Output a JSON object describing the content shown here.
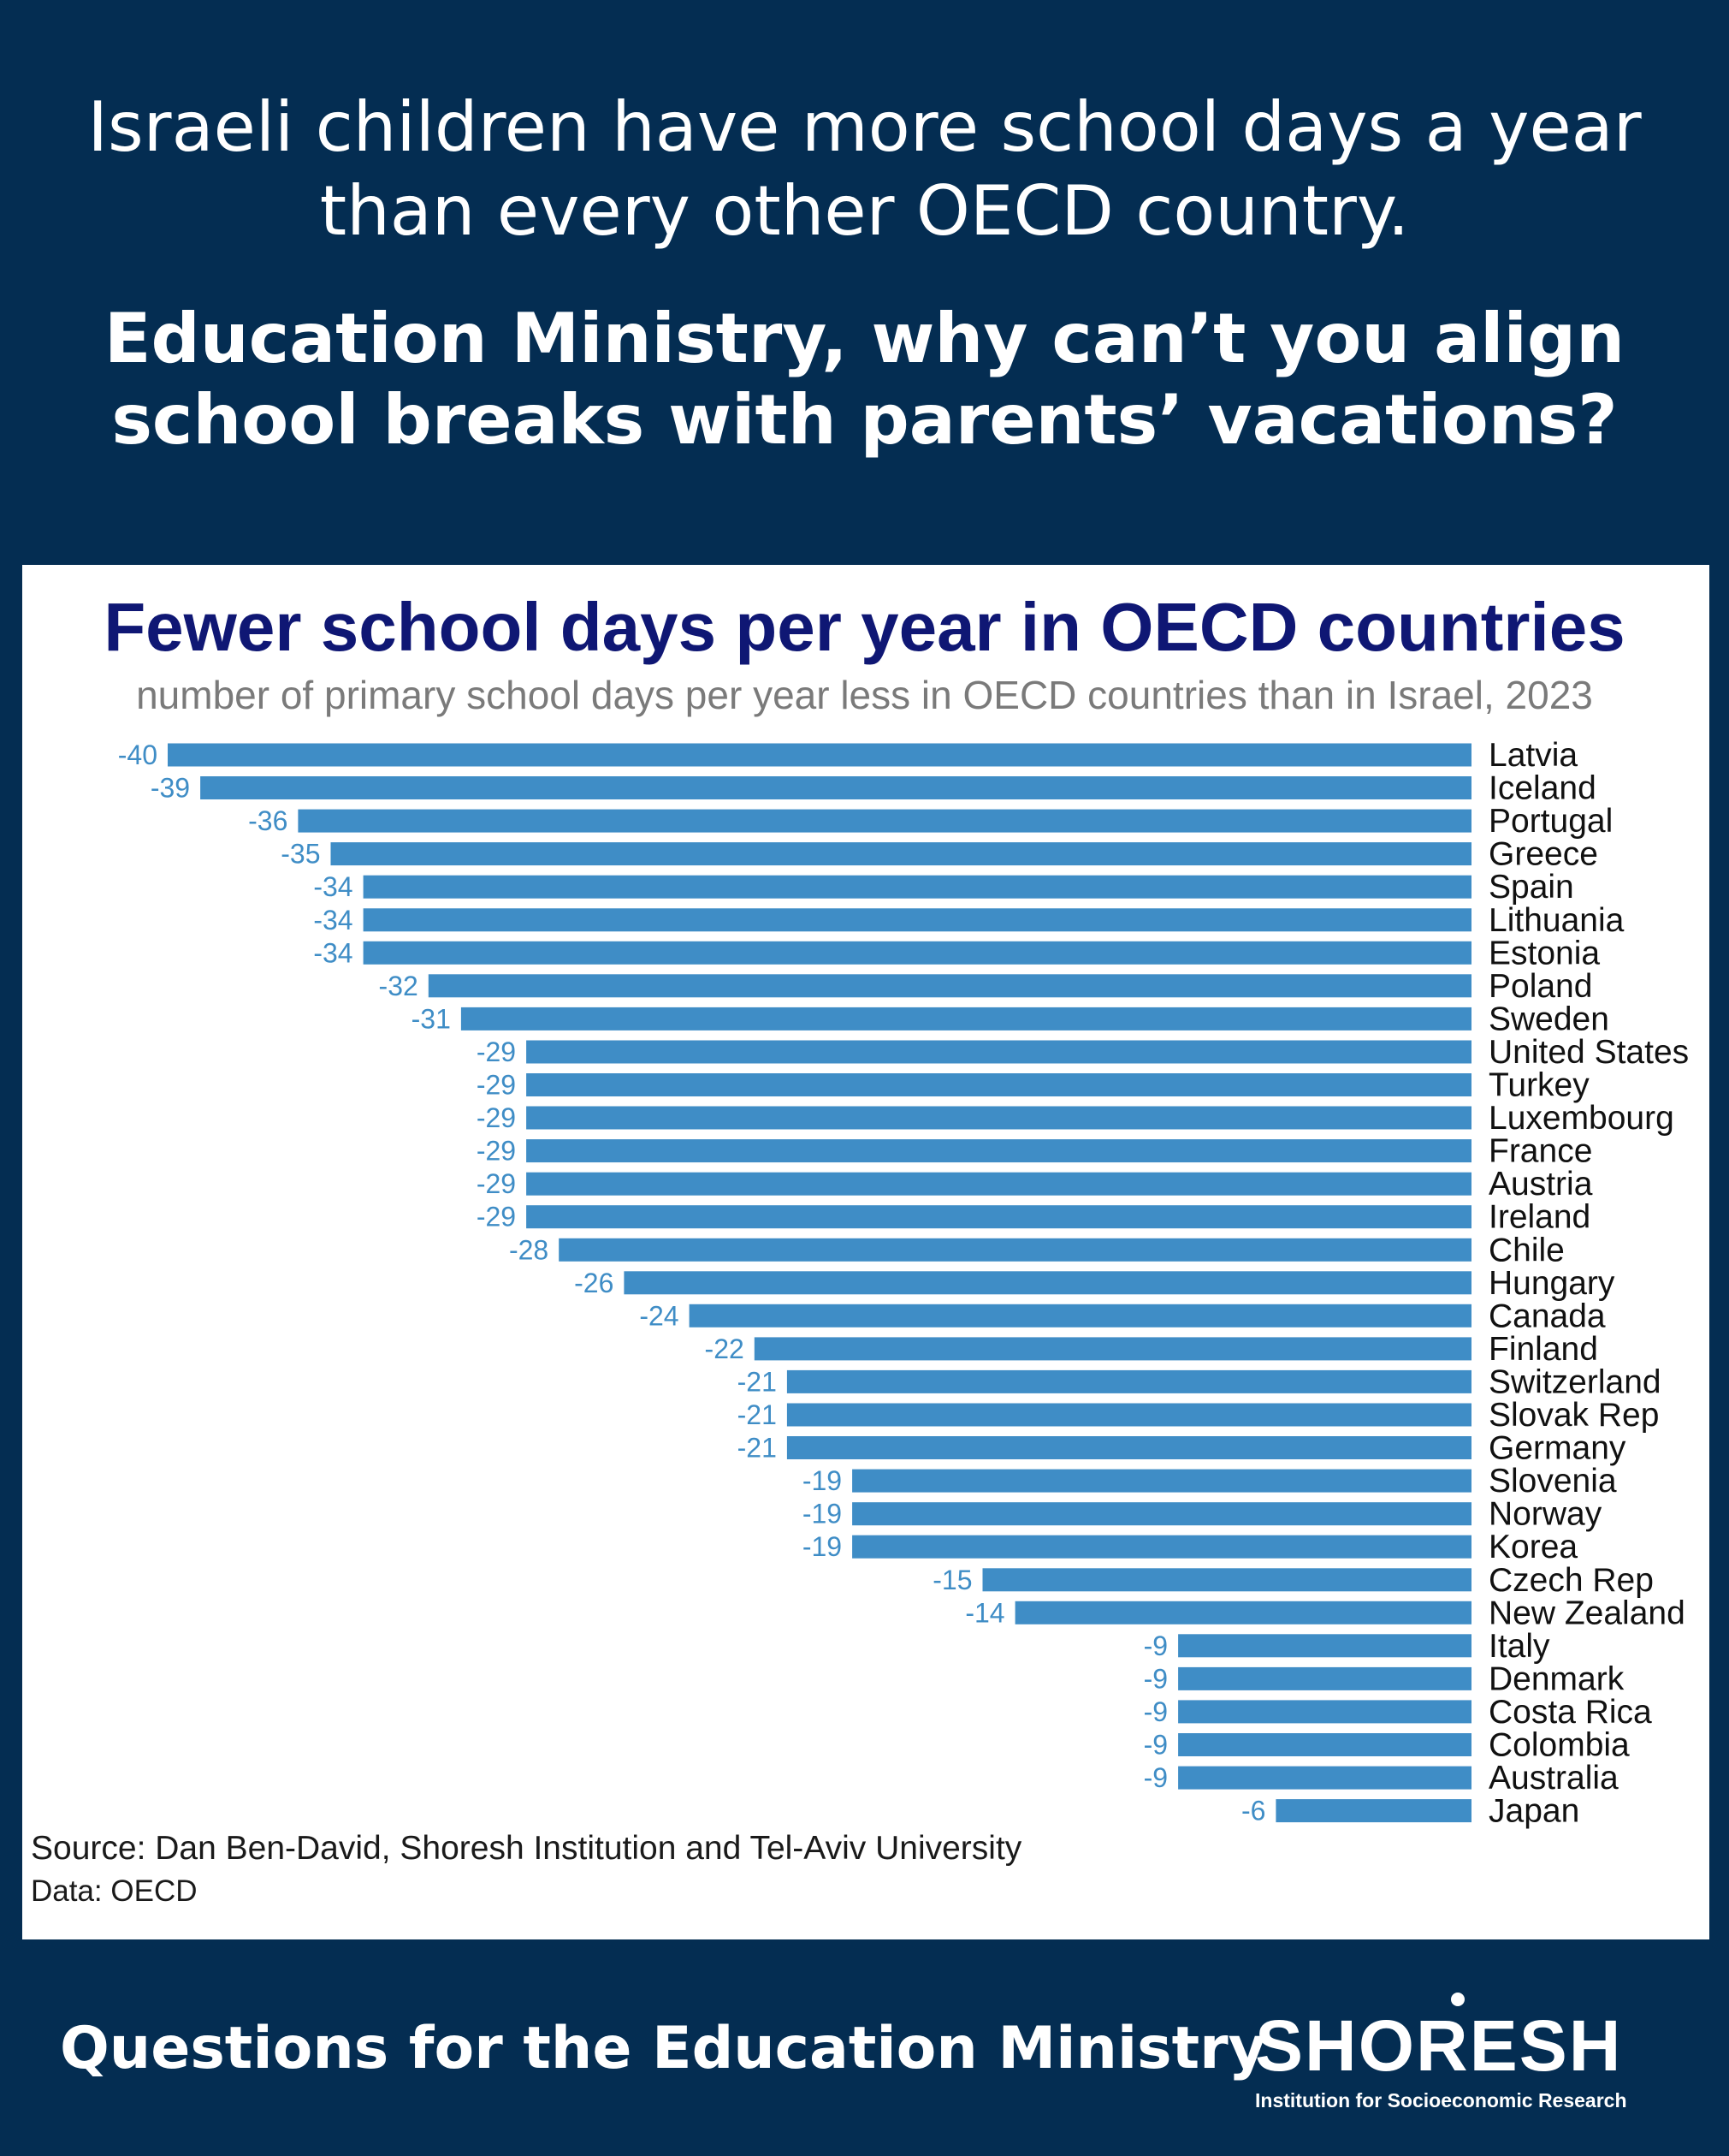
{
  "headline": {
    "line1": "Israeli children have more school days a year than every other OECD country.",
    "line2": "Education Ministry, why can’t you align school breaks with parents’ vacations?"
  },
  "chart_data": {
    "type": "bar",
    "orientation": "horizontal",
    "title": "Fewer school days per year in OECD countries",
    "subtitle": "number of primary school days per year less in OECD countries than in Israel, 2023",
    "categories": [
      "Latvia",
      "Iceland",
      "Portugal",
      "Greece",
      "Spain",
      "Lithuania",
      "Estonia",
      "Poland",
      "Sweden",
      "United States",
      "Turkey",
      "Luxembourg",
      "France",
      "Austria",
      "Ireland",
      "Chile",
      "Hungary",
      "Canada",
      "Finland",
      "Switzerland",
      "Slovak Rep",
      "Germany",
      "Slovenia",
      "Norway",
      "Korea",
      "Czech Rep",
      "New Zealand",
      "Italy",
      "Denmark",
      "Costa Rica",
      "Colombia",
      "Australia",
      "Japan"
    ],
    "values": [
      -40,
      -39,
      -36,
      -35,
      -34,
      -34,
      -34,
      -32,
      -31,
      -29,
      -29,
      -29,
      -29,
      -29,
      -29,
      -28,
      -26,
      -24,
      -22,
      -21,
      -21,
      -21,
      -19,
      -19,
      -19,
      -15,
      -14,
      -9,
      -9,
      -9,
      -9,
      -9,
      -6
    ],
    "xlim": [
      -40,
      0
    ],
    "bar_color": "#3f8dc6",
    "label_color": "#3f8dc6",
    "grid": false,
    "legend": false
  },
  "source": {
    "text": "Source: Dan Ben-David, Shoresh Institution and Tel-Aviv University",
    "data": "Data: OECD"
  },
  "footer": {
    "left": "Questions for the Education Ministry",
    "logo_word": "SHORESH",
    "logo_tagline": "Institution for Socioeconomic Research"
  },
  "colors": {
    "background": "#042d52",
    "title": "#0f1774"
  }
}
